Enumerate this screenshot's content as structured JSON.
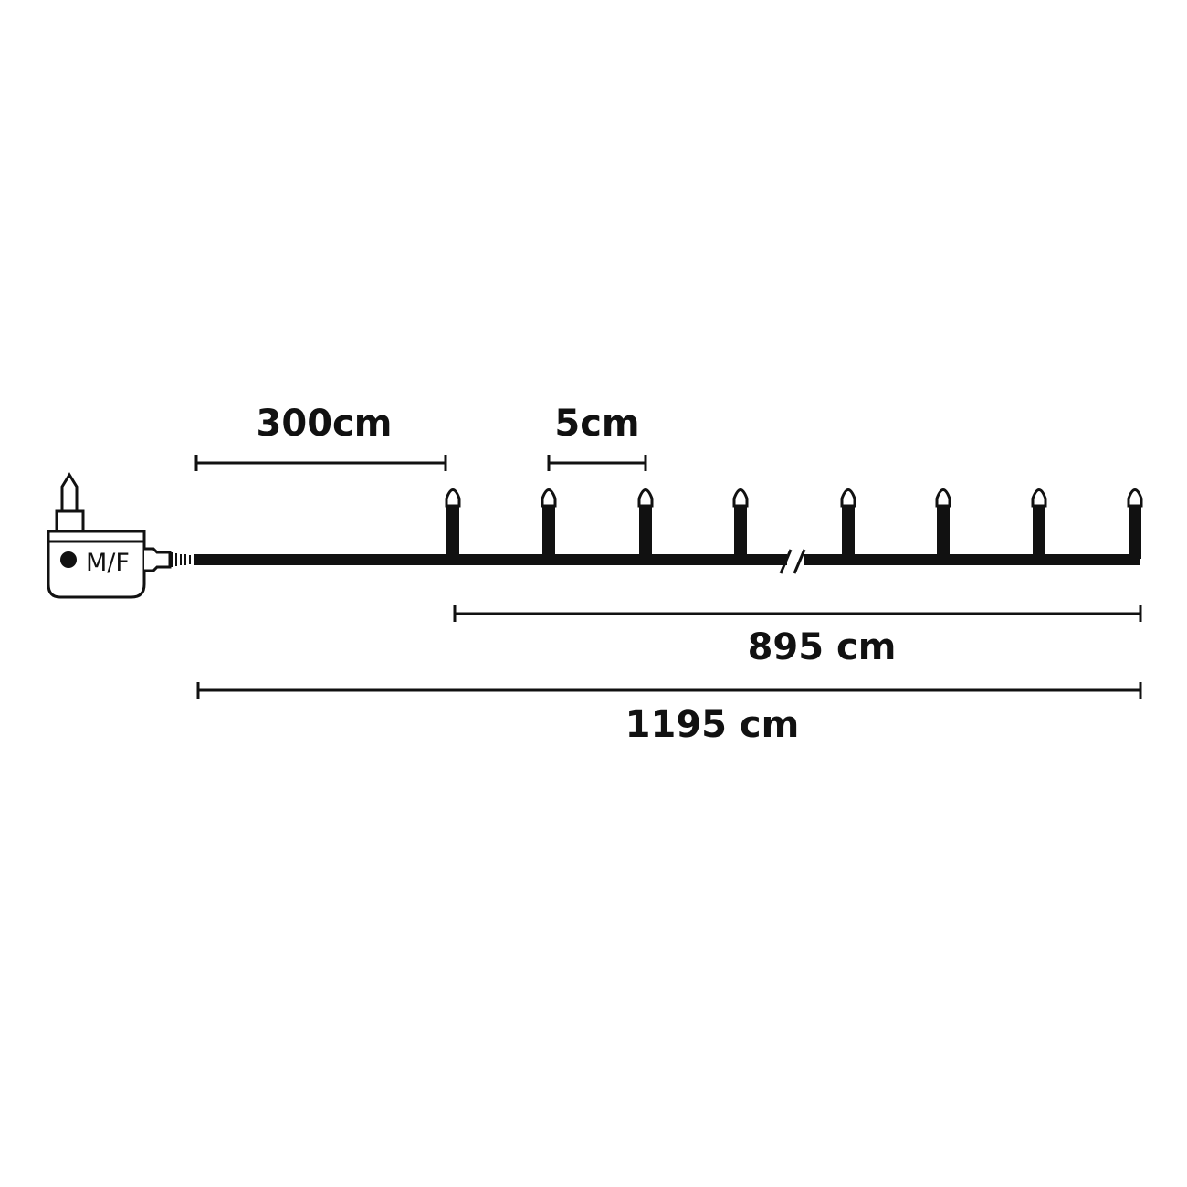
{
  "colors": {
    "line": "#111111",
    "background": "#ffffff"
  },
  "adapter": {
    "mode_label": "M/F",
    "button_icon": "filled-circle"
  },
  "dimensions": {
    "lead_cable": "300cm",
    "bulb_spacing": "5cm",
    "lit_section": "895 cm",
    "total_length": "1195 cm"
  },
  "bulbs": {
    "visible_before_break": 4,
    "visible_after_break": 4
  }
}
